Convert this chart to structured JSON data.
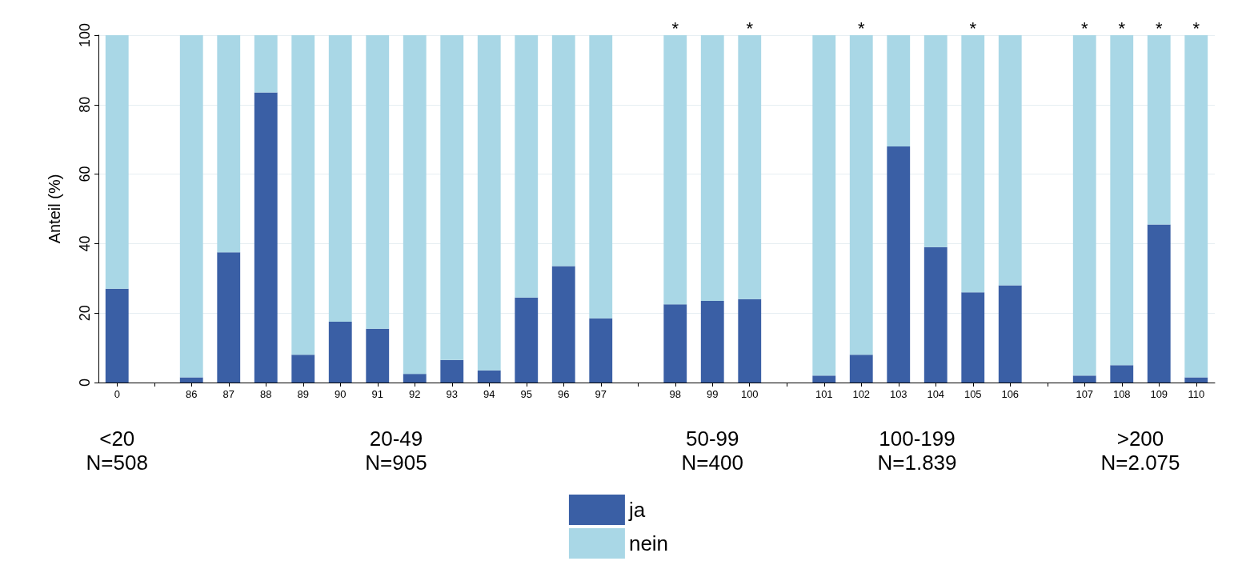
{
  "chart_data": {
    "type": "bar",
    "stacked": true,
    "ylabel": "Anteil (%)",
    "categories": [
      "0",
      null,
      "86",
      "87",
      "88",
      "89",
      "90",
      "91",
      "92",
      "93",
      "94",
      "95",
      "96",
      "97",
      null,
      "98",
      "99",
      "100",
      null,
      "101",
      "102",
      "103",
      "104",
      "105",
      "106",
      null,
      "107",
      "108",
      "109",
      "110"
    ],
    "series": [
      {
        "name": "ja",
        "color": "#3a5fa5",
        "values": [
          27,
          null,
          1.5,
          37.5,
          83.5,
          8,
          17.5,
          15.5,
          2.5,
          6.5,
          3.5,
          24.5,
          33.5,
          18.5,
          null,
          22.5,
          23.5,
          24,
          null,
          2,
          8,
          68,
          39,
          26,
          28,
          null,
          2,
          5,
          45.5,
          1.5
        ]
      },
      {
        "name": "nein",
        "color": "#a9d7e6",
        "values": [
          73,
          null,
          98.5,
          62.5,
          16.5,
          92,
          82.5,
          84.5,
          97.5,
          93.5,
          96.5,
          75.5,
          66.5,
          81.5,
          null,
          77.5,
          76.5,
          76,
          null,
          98,
          92,
          32,
          61,
          74,
          72,
          null,
          98,
          95,
          54.5,
          98.5
        ]
      }
    ],
    "ylim": [
      0,
      100
    ],
    "yticks": [
      0,
      20,
      40,
      60,
      80,
      100
    ],
    "grid": "y",
    "legend": "bottom",
    "annotations": [
      "<20\nN=508",
      "20-49\nN=905",
      "50-99\nN=400",
      "100-199\nN=1.839",
      ">200\nN=2.075",
      {
        "text": "*",
        "x": "98",
        "y": 100
      },
      {
        "text": "*",
        "x": "100",
        "y": 100
      },
      {
        "text": "*",
        "x": "102",
        "y": 100
      },
      {
        "text": "*",
        "x": "105",
        "y": 100
      },
      {
        "text": "*",
        "x": "107",
        "y": 100
      },
      {
        "text": "*",
        "x": "108",
        "y": 100
      },
      {
        "text": "*",
        "x": "109",
        "y": 100
      },
      {
        "text": "*",
        "x": "110",
        "y": 100
      }
    ]
  }
}
